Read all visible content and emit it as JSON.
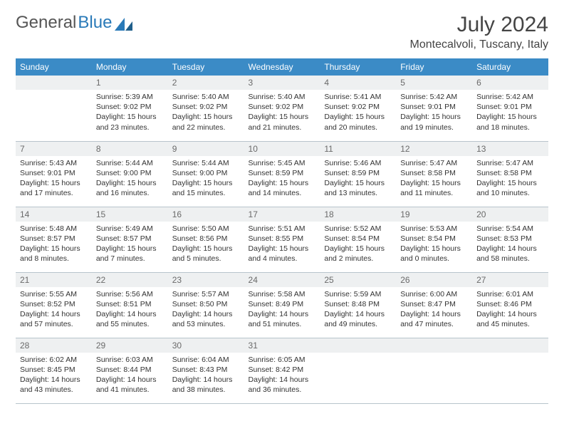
{
  "brand": {
    "part1": "General",
    "part2": "Blue"
  },
  "title": "July 2024",
  "location": "Montecalvoli, Tuscany, Italy",
  "colors": {
    "header_bg": "#3b8bc6",
    "header_text": "#ffffff",
    "daynum_bg": "#eef0f1",
    "daynum_text": "#6a6a6a",
    "border": "#b8c4cc",
    "body_text": "#333333",
    "logo_gray": "#555555",
    "logo_blue": "#2a7ab8"
  },
  "weekdays": [
    "Sunday",
    "Monday",
    "Tuesday",
    "Wednesday",
    "Thursday",
    "Friday",
    "Saturday"
  ],
  "first_weekday_index": 1,
  "days": [
    {
      "n": 1,
      "sunrise": "5:39 AM",
      "sunset": "9:02 PM",
      "daylight": "15 hours and 23 minutes."
    },
    {
      "n": 2,
      "sunrise": "5:40 AM",
      "sunset": "9:02 PM",
      "daylight": "15 hours and 22 minutes."
    },
    {
      "n": 3,
      "sunrise": "5:40 AM",
      "sunset": "9:02 PM",
      "daylight": "15 hours and 21 minutes."
    },
    {
      "n": 4,
      "sunrise": "5:41 AM",
      "sunset": "9:02 PM",
      "daylight": "15 hours and 20 minutes."
    },
    {
      "n": 5,
      "sunrise": "5:42 AM",
      "sunset": "9:01 PM",
      "daylight": "15 hours and 19 minutes."
    },
    {
      "n": 6,
      "sunrise": "5:42 AM",
      "sunset": "9:01 PM",
      "daylight": "15 hours and 18 minutes."
    },
    {
      "n": 7,
      "sunrise": "5:43 AM",
      "sunset": "9:01 PM",
      "daylight": "15 hours and 17 minutes."
    },
    {
      "n": 8,
      "sunrise": "5:44 AM",
      "sunset": "9:00 PM",
      "daylight": "15 hours and 16 minutes."
    },
    {
      "n": 9,
      "sunrise": "5:44 AM",
      "sunset": "9:00 PM",
      "daylight": "15 hours and 15 minutes."
    },
    {
      "n": 10,
      "sunrise": "5:45 AM",
      "sunset": "8:59 PM",
      "daylight": "15 hours and 14 minutes."
    },
    {
      "n": 11,
      "sunrise": "5:46 AM",
      "sunset": "8:59 PM",
      "daylight": "15 hours and 13 minutes."
    },
    {
      "n": 12,
      "sunrise": "5:47 AM",
      "sunset": "8:58 PM",
      "daylight": "15 hours and 11 minutes."
    },
    {
      "n": 13,
      "sunrise": "5:47 AM",
      "sunset": "8:58 PM",
      "daylight": "15 hours and 10 minutes."
    },
    {
      "n": 14,
      "sunrise": "5:48 AM",
      "sunset": "8:57 PM",
      "daylight": "15 hours and 8 minutes."
    },
    {
      "n": 15,
      "sunrise": "5:49 AM",
      "sunset": "8:57 PM",
      "daylight": "15 hours and 7 minutes."
    },
    {
      "n": 16,
      "sunrise": "5:50 AM",
      "sunset": "8:56 PM",
      "daylight": "15 hours and 5 minutes."
    },
    {
      "n": 17,
      "sunrise": "5:51 AM",
      "sunset": "8:55 PM",
      "daylight": "15 hours and 4 minutes."
    },
    {
      "n": 18,
      "sunrise": "5:52 AM",
      "sunset": "8:54 PM",
      "daylight": "15 hours and 2 minutes."
    },
    {
      "n": 19,
      "sunrise": "5:53 AM",
      "sunset": "8:54 PM",
      "daylight": "15 hours and 0 minutes."
    },
    {
      "n": 20,
      "sunrise": "5:54 AM",
      "sunset": "8:53 PM",
      "daylight": "14 hours and 58 minutes."
    },
    {
      "n": 21,
      "sunrise": "5:55 AM",
      "sunset": "8:52 PM",
      "daylight": "14 hours and 57 minutes."
    },
    {
      "n": 22,
      "sunrise": "5:56 AM",
      "sunset": "8:51 PM",
      "daylight": "14 hours and 55 minutes."
    },
    {
      "n": 23,
      "sunrise": "5:57 AM",
      "sunset": "8:50 PM",
      "daylight": "14 hours and 53 minutes."
    },
    {
      "n": 24,
      "sunrise": "5:58 AM",
      "sunset": "8:49 PM",
      "daylight": "14 hours and 51 minutes."
    },
    {
      "n": 25,
      "sunrise": "5:59 AM",
      "sunset": "8:48 PM",
      "daylight": "14 hours and 49 minutes."
    },
    {
      "n": 26,
      "sunrise": "6:00 AM",
      "sunset": "8:47 PM",
      "daylight": "14 hours and 47 minutes."
    },
    {
      "n": 27,
      "sunrise": "6:01 AM",
      "sunset": "8:46 PM",
      "daylight": "14 hours and 45 minutes."
    },
    {
      "n": 28,
      "sunrise": "6:02 AM",
      "sunset": "8:45 PM",
      "daylight": "14 hours and 43 minutes."
    },
    {
      "n": 29,
      "sunrise": "6:03 AM",
      "sunset": "8:44 PM",
      "daylight": "14 hours and 41 minutes."
    },
    {
      "n": 30,
      "sunrise": "6:04 AM",
      "sunset": "8:43 PM",
      "daylight": "14 hours and 38 minutes."
    },
    {
      "n": 31,
      "sunrise": "6:05 AM",
      "sunset": "8:42 PM",
      "daylight": "14 hours and 36 minutes."
    }
  ],
  "labels": {
    "sunrise_prefix": "Sunrise: ",
    "sunset_prefix": "Sunset: ",
    "daylight_prefix": "Daylight: "
  }
}
